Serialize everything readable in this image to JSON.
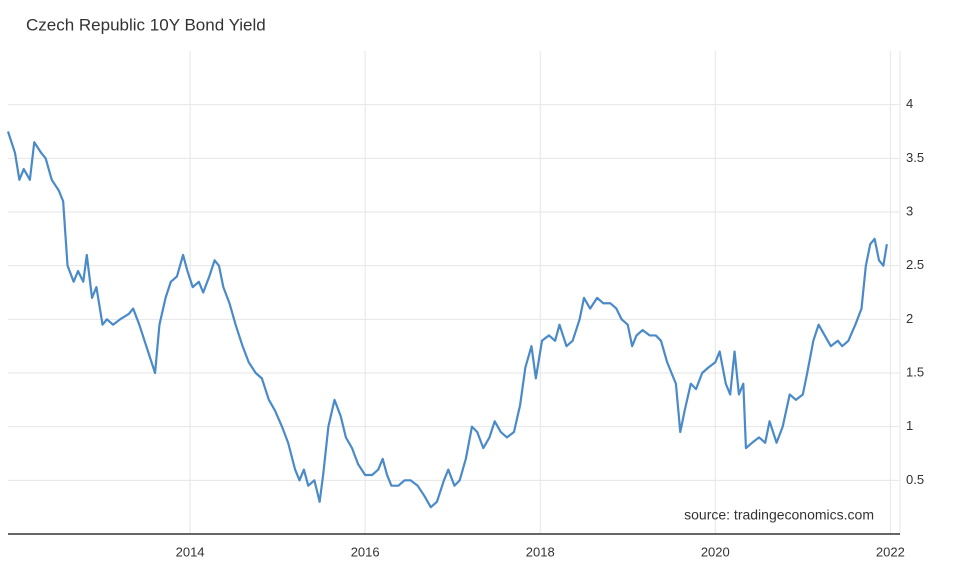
{
  "chart_data": {
    "type": "line",
    "title": "Czech Republic 10Y Bond Yield",
    "annotation": "source: tradingeconomics.com",
    "x": [
      2011.92,
      2012.0,
      2012.05,
      2012.1,
      2012.17,
      2012.22,
      2012.3,
      2012.35,
      2012.42,
      2012.5,
      2012.55,
      2012.6,
      2012.67,
      2012.72,
      2012.78,
      2012.82,
      2012.88,
      2012.93,
      2013.0,
      2013.05,
      2013.12,
      2013.2,
      2013.3,
      2013.35,
      2013.42,
      2013.5,
      2013.6,
      2013.65,
      2013.72,
      2013.78,
      2013.85,
      2013.92,
      2013.97,
      2014.03,
      2014.1,
      2014.15,
      2014.22,
      2014.28,
      2014.33,
      2014.38,
      2014.45,
      2014.52,
      2014.6,
      2014.67,
      2014.75,
      2014.82,
      2014.9,
      2014.97,
      2015.05,
      2015.12,
      2015.2,
      2015.25,
      2015.3,
      2015.35,
      2015.42,
      2015.48,
      2015.52,
      2015.58,
      2015.65,
      2015.72,
      2015.78,
      2015.85,
      2015.92,
      2016.0,
      2016.08,
      2016.15,
      2016.2,
      2016.25,
      2016.3,
      2016.38,
      2016.45,
      2016.52,
      2016.6,
      2016.68,
      2016.75,
      2016.82,
      2016.9,
      2016.95,
      2017.02,
      2017.08,
      2017.15,
      2017.22,
      2017.28,
      2017.35,
      2017.42,
      2017.48,
      2017.55,
      2017.62,
      2017.7,
      2017.77,
      2017.83,
      2017.9,
      2017.95,
      2018.02,
      2018.1,
      2018.17,
      2018.22,
      2018.3,
      2018.37,
      2018.45,
      2018.5,
      2018.57,
      2018.65,
      2018.72,
      2018.8,
      2018.87,
      2018.93,
      2019.0,
      2019.05,
      2019.1,
      2019.17,
      2019.25,
      2019.32,
      2019.38,
      2019.45,
      2019.5,
      2019.55,
      2019.6,
      2019.65,
      2019.72,
      2019.78,
      2019.85,
      2019.92,
      2020.0,
      2020.05,
      2020.12,
      2020.17,
      2020.22,
      2020.27,
      2020.32,
      2020.35,
      2020.42,
      2020.5,
      2020.57,
      2020.62,
      2020.7,
      2020.77,
      2020.85,
      2020.92,
      2021.0,
      2021.05,
      2021.12,
      2021.18,
      2021.25,
      2021.32,
      2021.4,
      2021.45,
      2021.52,
      2021.6,
      2021.67,
      2021.72,
      2021.77,
      2021.82,
      2021.87,
      2021.92,
      2021.96
    ],
    "series": [
      {
        "name": "Czech Republic 10Y Bond Yield",
        "color": "#4a8ac9",
        "values": [
          3.75,
          3.55,
          3.3,
          3.4,
          3.3,
          3.65,
          3.55,
          3.5,
          3.3,
          3.2,
          3.1,
          2.5,
          2.35,
          2.45,
          2.35,
          2.6,
          2.2,
          2.3,
          1.95,
          2.0,
          1.95,
          2.0,
          2.05,
          2.1,
          1.95,
          1.75,
          1.5,
          1.95,
          2.2,
          2.35,
          2.4,
          2.6,
          2.45,
          2.3,
          2.35,
          2.25,
          2.4,
          2.55,
          2.5,
          2.3,
          2.15,
          1.95,
          1.75,
          1.6,
          1.5,
          1.45,
          1.25,
          1.15,
          1.0,
          0.85,
          0.6,
          0.5,
          0.6,
          0.45,
          0.5,
          0.3,
          0.55,
          1.0,
          1.25,
          1.1,
          0.9,
          0.8,
          0.65,
          0.55,
          0.55,
          0.6,
          0.7,
          0.55,
          0.45,
          0.45,
          0.5,
          0.5,
          0.45,
          0.35,
          0.25,
          0.3,
          0.5,
          0.6,
          0.45,
          0.5,
          0.7,
          1.0,
          0.95,
          0.8,
          0.9,
          1.05,
          0.95,
          0.9,
          0.95,
          1.2,
          1.55,
          1.75,
          1.45,
          1.8,
          1.85,
          1.8,
          1.95,
          1.75,
          1.8,
          2.0,
          2.2,
          2.1,
          2.2,
          2.15,
          2.15,
          2.1,
          2.0,
          1.95,
          1.75,
          1.85,
          1.9,
          1.85,
          1.85,
          1.8,
          1.6,
          1.5,
          1.4,
          0.95,
          1.15,
          1.4,
          1.35,
          1.5,
          1.55,
          1.6,
          1.7,
          1.4,
          1.3,
          1.7,
          1.3,
          1.4,
          0.8,
          0.85,
          0.9,
          0.85,
          1.05,
          0.85,
          1.0,
          1.3,
          1.25,
          1.3,
          1.5,
          1.8,
          1.95,
          1.85,
          1.75,
          1.8,
          1.75,
          1.8,
          1.95,
          2.1,
          2.5,
          2.7,
          2.75,
          2.55,
          2.5,
          2.7
        ]
      }
    ],
    "xlim": [
      2011.92,
      2022.11
    ],
    "xticks": [
      2014,
      2016,
      2018,
      2020,
      2022
    ],
    "ylim": [
      0,
      4.5
    ],
    "yticks": [
      0.5,
      1,
      1.5,
      2,
      2.5,
      3,
      3.5,
      4
    ],
    "grid": true
  }
}
